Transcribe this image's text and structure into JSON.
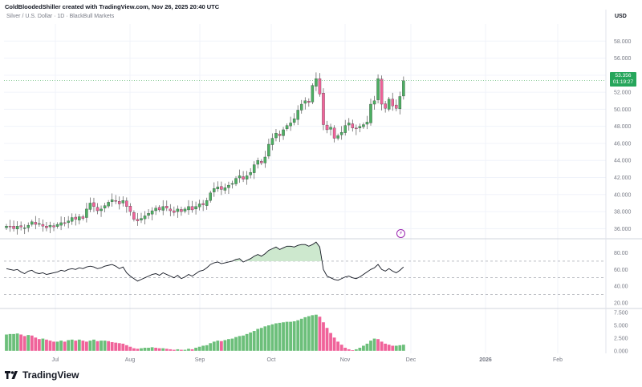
{
  "header": {
    "attribution": "ColdBloodedShiller created with TradingView.com, Nov 26, 2025 20:40 UTC",
    "symbol": "Silver / U.S. Dollar · 1D · BlackBull Markets",
    "currency": "USD"
  },
  "brand": {
    "name": "TradingView",
    "icon": "tradingview-logo-icon"
  },
  "price_label": {
    "price": "53.356",
    "countdown": "01:19:27"
  },
  "colors": {
    "up": "#6cbf7a",
    "down": "#f0639a",
    "up_body": "#4caf62",
    "grid": "#f0f3fa",
    "text": "#787b86"
  },
  "chart_data": [
    {
      "type": "candlestick",
      "ylim": [
        35,
        60
      ],
      "yticks": [
        36,
        38,
        40,
        42,
        44,
        46,
        48,
        50,
        52,
        54,
        56,
        58
      ],
      "ytick_labels": [
        "36.000",
        "38.000",
        "40.000",
        "42.000",
        "44.000",
        "46.000",
        "48.000",
        "50.000",
        "52.000",
        "54.000",
        "56.000",
        "58.000"
      ],
      "xticks": [
        "Jul",
        "Aug",
        "Sep",
        "Oct",
        "Nov",
        "Dec",
        "2026",
        "Feb"
      ],
      "last_price": 53.356,
      "closes": [
        36.3,
        36.2,
        36.0,
        36.3,
        36.2,
        36.1,
        36.4,
        36.8,
        36.5,
        36.6,
        36.3,
        36.1,
        36.4,
        36.2,
        36.5,
        36.7,
        36.6,
        36.9,
        37.3,
        37.1,
        37.4,
        37.2,
        38.3,
        39.0,
        38.6,
        38.1,
        38.3,
        38.7,
        39.1,
        39.4,
        39.2,
        38.9,
        39.3,
        38.6,
        38.0,
        37.1,
        36.9,
        37.2,
        37.5,
        37.8,
        38.1,
        38.4,
        38.2,
        38.6,
        38.4,
        38.1,
        37.9,
        38.3,
        38.0,
        38.3,
        38.6,
        38.2,
        38.6,
        38.9,
        38.8,
        39.3,
        40.2,
        40.7,
        40.9,
        40.6,
        40.8,
        41.1,
        41.3,
        41.9,
        42.2,
        41.8,
        42.2,
        42.6,
        43.5,
        44.0,
        43.7,
        44.4,
        45.9,
        46.6,
        47.2,
        46.9,
        47.6,
        48.1,
        48.4,
        48.9,
        49.9,
        50.6,
        51.0,
        50.8,
        52.8,
        53.6,
        51.8,
        48.2,
        47.6,
        47.9,
        46.6,
        46.9,
        47.3,
        48.1,
        48.4,
        47.8,
        47.7,
        48.0,
        48.2,
        48.5,
        50.6,
        51.0,
        53.6,
        50.6,
        50.1,
        51.2,
        50.4,
        50.1,
        51.5,
        53.356
      ]
    },
    {
      "type": "line",
      "name": "",
      "ylim": [
        15,
        95
      ],
      "yticks": [
        20,
        40,
        60,
        80
      ],
      "ytick_labels": [
        "20.00",
        "40.00",
        "60.00",
        "80.00"
      ],
      "levels": [
        30,
        50,
        70
      ],
      "overbought": 70,
      "values": [
        61,
        60,
        59,
        60,
        57,
        55,
        58,
        59,
        56,
        55,
        56,
        54,
        55,
        56,
        57,
        59,
        58,
        60,
        61,
        60,
        62,
        61,
        63,
        64,
        63,
        61,
        62,
        64,
        65,
        66,
        64,
        61,
        63,
        56,
        52,
        49,
        46,
        48,
        50,
        52,
        54,
        55,
        53,
        56,
        54,
        52,
        50,
        53,
        49,
        51,
        54,
        52,
        55,
        58,
        59,
        62,
        66,
        68,
        69,
        67,
        68,
        69,
        70,
        72,
        73,
        69,
        71,
        73,
        76,
        78,
        76,
        79,
        83,
        85,
        87,
        84,
        86,
        88,
        88,
        87,
        89,
        90,
        90,
        88,
        90,
        93,
        87,
        60,
        52,
        50,
        48,
        47,
        49,
        51,
        52,
        50,
        49,
        51,
        54,
        57,
        60,
        62,
        66,
        60,
        58,
        61,
        58,
        56,
        59,
        63
      ]
    },
    {
      "type": "bar",
      "name": "",
      "ylim": [
        -0.5,
        8
      ],
      "yticks": [
        0,
        2.5,
        5,
        7.5
      ],
      "ytick_labels": [
        "0.000",
        "2.500",
        "5.000",
        "7.500"
      ],
      "values": [
        3.2,
        3.3,
        3.3,
        3.4,
        3.2,
        2.9,
        3.1,
        3.0,
        2.6,
        2.3,
        2.4,
        2.2,
        2.0,
        1.8,
        1.8,
        2.0,
        1.8,
        2.1,
        2.2,
        2.0,
        2.2,
        2.0,
        1.8,
        2.0,
        2.2,
        1.9,
        2.0,
        2.0,
        1.9,
        1.7,
        1.6,
        1.5,
        1.4,
        1.1,
        0.8,
        0.5,
        0.4,
        0.5,
        0.6,
        0.6,
        0.7,
        0.6,
        0.5,
        0.5,
        0.4,
        0.3,
        0.2,
        0.3,
        0.2,
        0.2,
        0.4,
        0.3,
        0.6,
        0.8,
        1.0,
        1.1,
        1.5,
        1.8,
        2.0,
        1.9,
        2.1,
        2.3,
        2.4,
        2.7,
        2.9,
        3.0,
        3.3,
        3.6,
        3.9,
        4.3,
        4.5,
        4.8,
        5.0,
        5.2,
        5.4,
        5.5,
        5.6,
        5.7,
        5.7,
        5.8,
        6.0,
        6.3,
        6.6,
        6.8,
        7.0,
        7.1,
        6.7,
        5.6,
        4.5,
        3.5,
        2.6,
        1.8,
        1.2,
        0.6,
        0.3,
        0.1,
        0.3,
        0.6,
        1.0,
        1.4,
        2.0,
        2.4,
        2.3,
        1.8,
        1.4,
        1.2,
        1.0,
        1.0,
        1.1,
        1.2
      ],
      "colors_by_sign_of_change": true
    }
  ]
}
